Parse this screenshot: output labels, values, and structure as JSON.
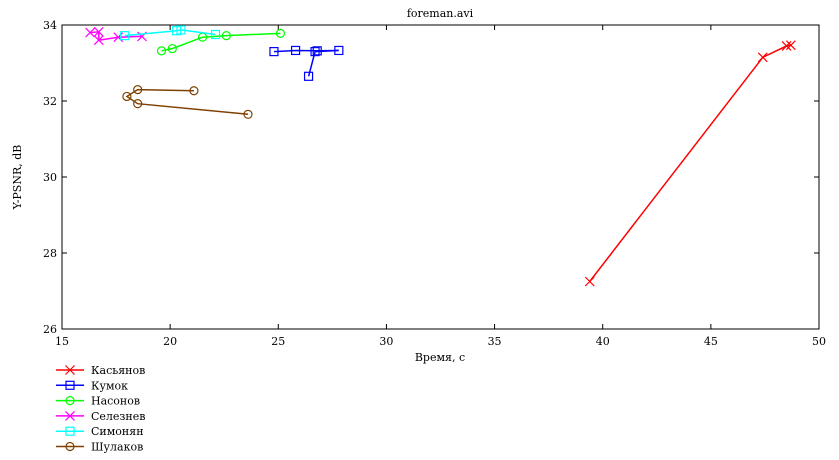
{
  "chart_data": {
    "type": "line",
    "title": "foreman.avi",
    "xlabel": "Время, с",
    "ylabel": "Y-PSNR, dB",
    "xlim": [
      15,
      50
    ],
    "ylim": [
      26,
      34
    ],
    "xticks": [
      "15",
      "20",
      "25",
      "30",
      "35",
      "40",
      "45",
      "50"
    ],
    "yticks": [
      "26",
      "28",
      "30",
      "32",
      "34"
    ],
    "grid": false,
    "legend_position": "bottom-left, outside plot",
    "series": [
      {
        "name": "Касьянов",
        "color": "#ff0000",
        "marker": "x",
        "points": [
          [
            39.4,
            27.25
          ],
          [
            47.4,
            33.15
          ],
          [
            48.5,
            33.45
          ],
          [
            48.7,
            33.47
          ]
        ]
      },
      {
        "name": "Кумок",
        "color": "#0000ff",
        "marker": "square",
        "points": [
          [
            24.8,
            33.3
          ],
          [
            25.8,
            33.33
          ],
          [
            26.8,
            33.32
          ],
          [
            27.8,
            33.33
          ],
          [
            26.7,
            33.3
          ],
          [
            26.4,
            32.65
          ]
        ]
      },
      {
        "name": "Насонов",
        "color": "#00ff00",
        "marker": "circle",
        "points": [
          [
            25.1,
            33.78
          ],
          [
            22.6,
            33.72
          ],
          [
            21.5,
            33.68
          ],
          [
            20.1,
            33.38
          ],
          [
            19.6,
            33.32
          ]
        ]
      },
      {
        "name": "Селезнев",
        "color": "#ff00ff",
        "marker": "x",
        "points": [
          [
            16.3,
            33.8
          ],
          [
            16.7,
            33.82
          ],
          [
            16.7,
            33.6
          ],
          [
            17.6,
            33.68
          ],
          [
            18.7,
            33.7
          ]
        ]
      },
      {
        "name": "Симонян",
        "color": "#00ffff",
        "marker": "square",
        "points": [
          [
            17.9,
            33.72
          ],
          [
            20.3,
            33.85
          ],
          [
            20.5,
            33.87
          ],
          [
            22.1,
            33.75
          ]
        ]
      },
      {
        "name": "Шулаков",
        "color": "#804000",
        "marker": "circle",
        "points": [
          [
            21.1,
            32.27
          ],
          [
            18.5,
            32.3
          ],
          [
            18.0,
            32.12
          ],
          [
            18.5,
            31.93
          ],
          [
            23.6,
            31.65
          ]
        ]
      }
    ]
  }
}
